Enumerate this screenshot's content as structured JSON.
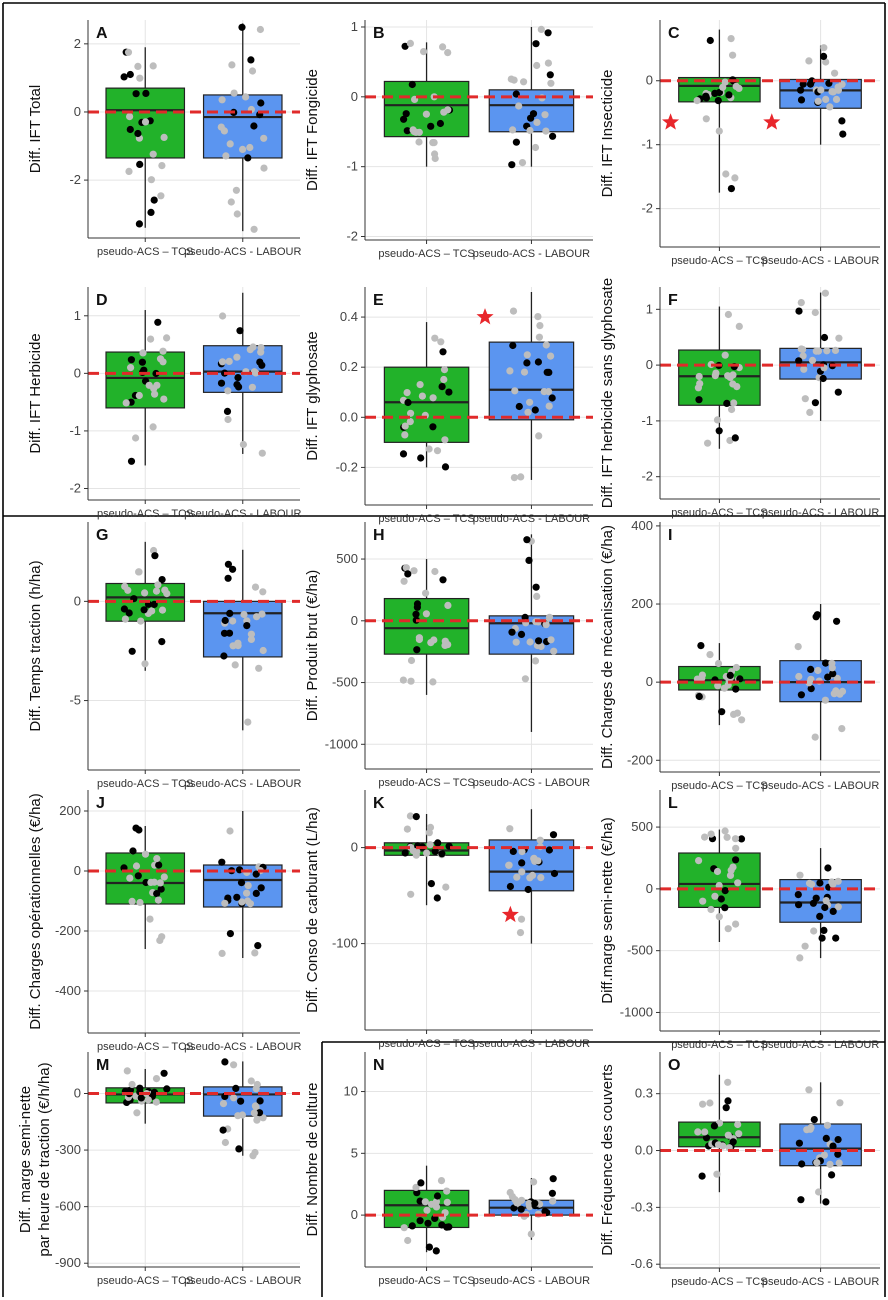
{
  "figure": {
    "x_categories": [
      "pseudo-ACS – TCS",
      "pseudo-ACS - LABOUR"
    ],
    "colors": {
      "tcs": "#22b22a",
      "labour": "#5b95f0",
      "zero_line": "#e02a2a",
      "star": "#e8262b",
      "point_dark": "#000000",
      "point_light": "#bdbdbd",
      "grid": "#e4e4e4"
    }
  },
  "chart_data": [
    {
      "id": "A",
      "type": "box",
      "panel_label": "A",
      "ylabel": "Diff. IFT Total",
      "ylim": [
        -3.7,
        2.7
      ],
      "yticks": [
        -2,
        0,
        2
      ],
      "boxes": [
        {
          "q1": -1.35,
          "median": 0.05,
          "q3": 0.7,
          "whisker_low": -3.4,
          "whisker_high": 1.9
        },
        {
          "q1": -1.35,
          "median": -0.15,
          "q3": 0.5,
          "whisker_low": -3.5,
          "whisker_high": 2.6
        }
      ],
      "stars": []
    },
    {
      "id": "B",
      "type": "box",
      "panel_label": "B",
      "ylabel": "Diff. IFT Fongicide",
      "ylim": [
        -2.05,
        1.1
      ],
      "yticks": [
        -2,
        -1,
        0,
        1
      ],
      "boxes": [
        {
          "q1": -0.57,
          "median": -0.12,
          "q3": 0.22,
          "whisker_low": -1.0,
          "whisker_high": 0.78
        },
        {
          "q1": -0.5,
          "median": -0.12,
          "q3": 0.1,
          "whisker_low": -1.0,
          "whisker_high": 1.0
        }
      ],
      "stars": []
    },
    {
      "id": "C",
      "type": "box",
      "panel_label": "C",
      "ylabel": "Diff. IFT Insecticide",
      "ylim": [
        -2.6,
        0.95
      ],
      "yticks": [
        -2,
        -1,
        0
      ],
      "boxes": [
        {
          "q1": -0.33,
          "median": -0.08,
          "q3": 0.05,
          "whisker_low": -1.75,
          "whisker_high": 0.8
        },
        {
          "q1": -0.43,
          "median": -0.15,
          "q3": 0.02,
          "whisker_low": -1.0,
          "whisker_high": 0.55
        }
      ],
      "stars": [
        {
          "series": 0,
          "y": -0.65
        },
        {
          "series": 1,
          "y": -0.65
        }
      ]
    },
    {
      "id": "D",
      "type": "box",
      "panel_label": "D",
      "ylabel": "Diff. IFT Herbicide",
      "ylim": [
        -2.2,
        1.5
      ],
      "yticks": [
        -2,
        -1,
        0,
        1
      ],
      "boxes": [
        {
          "q1": -0.6,
          "median": -0.08,
          "q3": 0.37,
          "whisker_low": -1.6,
          "whisker_high": 1.1
        },
        {
          "q1": -0.33,
          "median": 0.03,
          "q3": 0.48,
          "whisker_low": -1.4,
          "whisker_high": 1.4
        }
      ],
      "stars": []
    },
    {
      "id": "E",
      "type": "box",
      "panel_label": "E",
      "ylabel": "Diff. IFT glyphosate",
      "ylim": [
        -0.35,
        0.52
      ],
      "yticks": [
        -0.2,
        0.0,
        0.2,
        0.4
      ],
      "boxes": [
        {
          "q1": -0.1,
          "median": 0.06,
          "q3": 0.2,
          "whisker_low": -0.2,
          "whisker_high": 0.38
        },
        {
          "q1": -0.01,
          "median": 0.11,
          "q3": 0.3,
          "whisker_low": -0.25,
          "whisker_high": 0.5
        }
      ],
      "stars": [
        {
          "series": 1,
          "y": 0.4,
          "offset": -0.55
        }
      ]
    },
    {
      "id": "F",
      "type": "box",
      "panel_label": "F",
      "ylabel": "Diff. IFT herbicide sans glyphosate",
      "ylim": [
        -2.4,
        1.4
      ],
      "yticks": [
        -2,
        -1,
        0,
        1
      ],
      "boxes": [
        {
          "q1": -0.72,
          "median": -0.2,
          "q3": 0.27,
          "whisker_low": -1.5,
          "whisker_high": 1.05
        },
        {
          "q1": -0.25,
          "median": 0.05,
          "q3": 0.3,
          "whisker_low": -1.0,
          "whisker_high": 1.3
        }
      ],
      "stars": []
    },
    {
      "id": "G",
      "type": "box",
      "panel_label": "G",
      "ylabel": "Diff. Temps traction (h/ha)",
      "ylim": [
        -8.5,
        4.0
      ],
      "yticks": [
        -5,
        0
      ],
      "boxes": [
        {
          "q1": -1.0,
          "median": 0.2,
          "q3": 0.9,
          "whisker_low": -3.5,
          "whisker_high": 3.0
        },
        {
          "q1": -2.8,
          "median": -0.6,
          "q3": 0.0,
          "whisker_low": -6.5,
          "whisker_high": 2.6
        }
      ],
      "stars": []
    },
    {
      "id": "H",
      "type": "box",
      "panel_label": "H",
      "ylabel": "Diff. Produit brut (€/ha)",
      "ylim": [
        -1200,
        800
      ],
      "yticks": [
        -1000,
        -500,
        0,
        500
      ],
      "boxes": [
        {
          "q1": -270,
          "median": -60,
          "q3": 180,
          "whisker_low": -600,
          "whisker_high": 500
        },
        {
          "q1": -270,
          "median": -20,
          "q3": 40,
          "whisker_low": -900,
          "whisker_high": 700
        }
      ],
      "stars": []
    },
    {
      "id": "I",
      "type": "box",
      "panel_label": "I",
      "ylabel": "Diff. Charges de mécanisation (€/ha)",
      "ylim": [
        -230,
        410
      ],
      "yticks": [
        -200,
        0,
        200,
        400
      ],
      "boxes": [
        {
          "q1": -20,
          "median": 5,
          "q3": 40,
          "whisker_low": -110,
          "whisker_high": 100
        },
        {
          "q1": -50,
          "median": 0,
          "q3": 55,
          "whisker_low": -200,
          "whisker_high": 200
        }
      ],
      "stars": []
    },
    {
      "id": "J",
      "type": "box",
      "panel_label": "J",
      "ylabel": "Diff. Charges opérationnelles (€/ha)",
      "ylim": [
        -540,
        270
      ],
      "yticks": [
        -400,
        -200,
        0,
        200
      ],
      "boxes": [
        {
          "q1": -110,
          "median": -40,
          "q3": 60,
          "whisker_low": -260,
          "whisker_high": 150
        },
        {
          "q1": -120,
          "median": -30,
          "q3": 20,
          "whisker_low": -290,
          "whisker_high": 200
        }
      ],
      "stars": []
    },
    {
      "id": "K",
      "type": "box",
      "panel_label": "K",
      "ylabel": "Diff. Conso de carburant (L/ha)",
      "ylim": [
        -190,
        60
      ],
      "yticks": [
        -100,
        0
      ],
      "boxes": [
        {
          "q1": -8,
          "median": -3,
          "q3": 5,
          "whisker_low": -60,
          "whisker_high": 35
        },
        {
          "q1": -45,
          "median": -25,
          "q3": 8,
          "whisker_low": -100,
          "whisker_high": 40
        }
      ],
      "stars": [
        {
          "series": 1,
          "y": -70,
          "offset": -0.25
        }
      ]
    },
    {
      "id": "L",
      "type": "box",
      "panel_label": "L",
      "ylabel": "Diff.marge semi-nette (€/ha)",
      "ylim": [
        -1150,
        800
      ],
      "yticks": [
        -1000,
        -500,
        0,
        500
      ],
      "boxes": [
        {
          "q1": -150,
          "median": 40,
          "q3": 290,
          "whisker_low": -430,
          "whisker_high": 480
        },
        {
          "q1": -270,
          "median": -110,
          "q3": 75,
          "whisker_low": -560,
          "whisker_high": 330
        }
      ],
      "stars": []
    },
    {
      "id": "M",
      "type": "box",
      "panel_label": "M",
      "ylabel": "Diff. marge semi-nette\npar heure de traction  (€/h/ha)",
      "ylim": [
        -920,
        220
      ],
      "yticks": [
        -900,
        -600,
        -300,
        0
      ],
      "boxes": [
        {
          "q1": -50,
          "median": -5,
          "q3": 30,
          "whisker_low": -160,
          "whisker_high": 130
        },
        {
          "q1": -120,
          "median": -5,
          "q3": 35,
          "whisker_low": -330,
          "whisker_high": 170
        }
      ],
      "stars": []
    },
    {
      "id": "N",
      "type": "box",
      "panel_label": "N",
      "ylabel": "Diff. Nombre de culture",
      "ylim": [
        -4.2,
        13.2
      ],
      "yticks": [
        0,
        5,
        10
      ],
      "boxes": [
        {
          "q1": -1.0,
          "median": 0.8,
          "q3": 2.0,
          "whisker_low": -3.0,
          "whisker_high": 4.0
        },
        {
          "q1": 0.0,
          "median": 0.6,
          "q3": 1.2,
          "whisker_low": -2.0,
          "whisker_high": 3.0
        }
      ],
      "stars": []
    },
    {
      "id": "O",
      "type": "box",
      "panel_label": "O",
      "ylabel": "Diff. Fréquence des couverts",
      "ylim": [
        -0.62,
        0.52
      ],
      "yticks": [
        -0.6,
        -0.3,
        0.0,
        0.3
      ],
      "boxes": [
        {
          "q1": 0.02,
          "median": 0.07,
          "q3": 0.15,
          "whisker_low": -0.22,
          "whisker_high": 0.4
        },
        {
          "q1": -0.08,
          "median": 0.01,
          "q3": 0.14,
          "whisker_low": -0.28,
          "whisker_high": 0.36
        }
      ],
      "stars": []
    }
  ]
}
